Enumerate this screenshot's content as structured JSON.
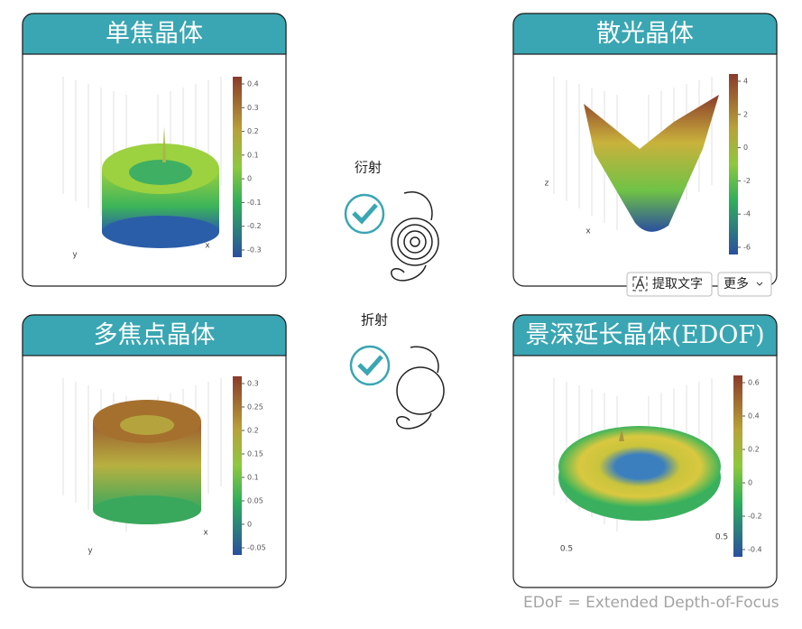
{
  "panels": [
    {
      "title": "单焦晶体",
      "colorbar_ticks": [
        0.4,
        0.3,
        0.2,
        0.1,
        0,
        -0.1,
        -0.2,
        -0.3
      ],
      "axis_labels": [
        "x",
        "y"
      ]
    },
    {
      "title": "散光晶体",
      "colorbar_ticks": [
        4,
        2,
        0,
        -2,
        -4,
        -6
      ],
      "axis_labels": [
        "z",
        "x"
      ]
    },
    {
      "title": "多焦点晶体",
      "colorbar_ticks": [
        0.3,
        0.25,
        0.2,
        0.15,
        0.1,
        0.05,
        0,
        -0.05
      ],
      "axis_labels": [
        "x",
        "y"
      ]
    },
    {
      "title": "景深延长晶体(EDOF)",
      "colorbar_ticks": [
        0.6,
        0.4,
        0.2,
        0,
        -0.2,
        -0.4
      ],
      "axis_labels": [
        "0.5",
        "0.5"
      ]
    }
  ],
  "middle": [
    {
      "label": "衍射"
    },
    {
      "label": "折射"
    }
  ],
  "toolbar": {
    "extract": "提取文字",
    "more": "更多"
  },
  "footnote": "EDoF = Extended Depth-of-Focus"
}
